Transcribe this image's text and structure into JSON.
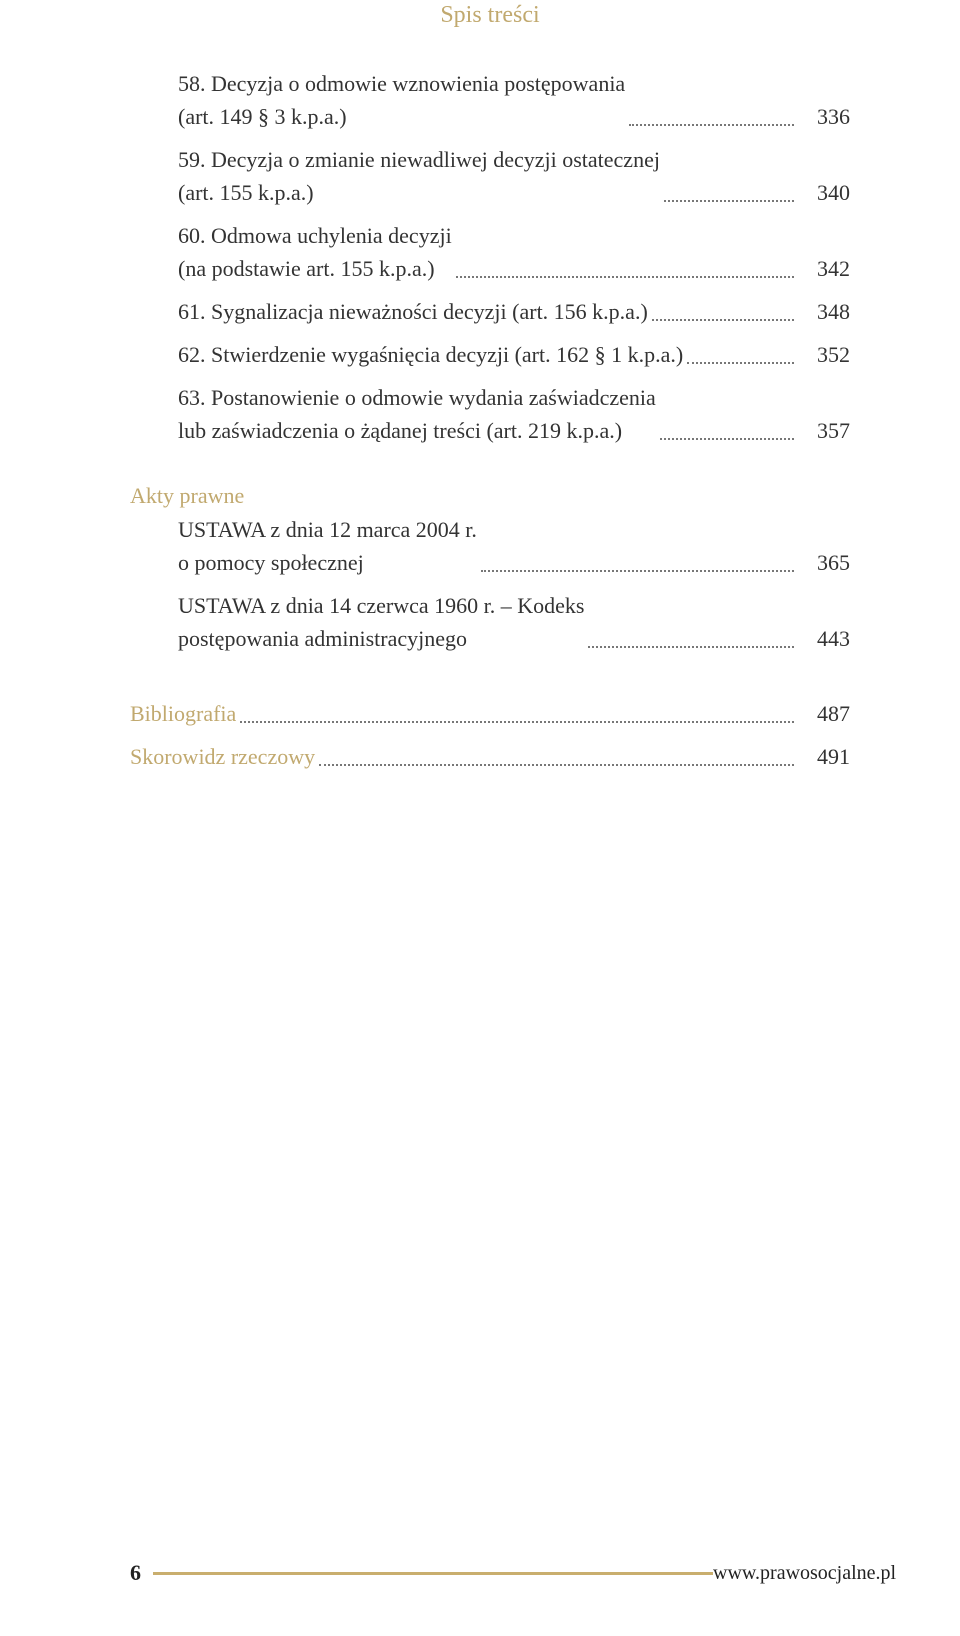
{
  "colors": {
    "accent": "#c1a96f",
    "text": "#333333",
    "leaders": "#777777",
    "footer_rule": "#c9ae6e"
  },
  "header": {
    "title": "Spis treści"
  },
  "toc": {
    "entries": [
      {
        "lines": [
          "58. Decyzja o odmowie wznowienia postępowania",
          "(art. 149 § 3 k.p.a.)"
        ],
        "page": "336",
        "indent": 1
      },
      {
        "lines": [
          "59. Decyzja o zmianie niewadliwej decyzji ostatecznej",
          "(art. 155 k.p.a.)"
        ],
        "page": "340",
        "indent": 1
      },
      {
        "lines": [
          "60. Odmowa uchylenia decyzji",
          "(na podstawie art. 155 k.p.a.)"
        ],
        "page": "342",
        "indent": 1
      },
      {
        "lines": [
          "61. Sygnalizacja nieważności decyzji (art. 156 k.p.a.)"
        ],
        "page": "348",
        "indent": 1
      },
      {
        "lines": [
          "62. Stwierdzenie wygaśnięcia decyzji (art. 162 § 1 k.p.a.)"
        ],
        "page": "352",
        "indent": 1
      },
      {
        "lines": [
          "63. Postanowienie o odmowie wydania zaświadczenia",
          "lub zaświadczenia o żądanej treści (art. 219 k.p.a.)"
        ],
        "page": "357",
        "indent": 1
      }
    ]
  },
  "acts": {
    "label": "Akty prawne",
    "entries": [
      {
        "lines": [
          "USTAWA z dnia 12 marca 2004 r.",
          "o pomocy społecznej"
        ],
        "page": "365",
        "indent": 1
      },
      {
        "lines": [
          "USTAWA z dnia 14 czerwca 1960 r. – Kodeks",
          "postępowania administracyjnego"
        ],
        "page": "443",
        "indent": 1
      }
    ]
  },
  "tail_entries": [
    {
      "lines": [
        "Bibliografia"
      ],
      "page": "487",
      "indent": 0
    },
    {
      "lines": [
        "Skorowidz rzeczowy"
      ],
      "page": "491",
      "indent": 0
    }
  ],
  "footer": {
    "page_number": "6",
    "url": "www.prawosocjalne.pl"
  }
}
